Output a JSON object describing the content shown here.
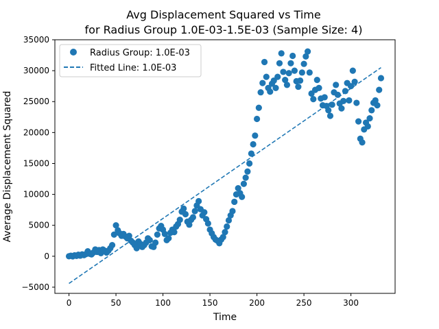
{
  "chart_data": {
    "type": "scatter",
    "title_line1": "Avg Displacement Squared vs Time",
    "title_line2": "for Radius Group 1.0E-03-1.5E-03 (Sample Size: 4)",
    "xlabel": "Time",
    "ylabel": "Average Displacement Squared",
    "xlim": [
      -15,
      347
    ],
    "ylim": [
      -6000,
      35000
    ],
    "xticks": [
      0,
      50,
      100,
      150,
      200,
      250,
      300
    ],
    "yticks": [
      -5000,
      0,
      5000,
      10000,
      15000,
      20000,
      25000,
      30000,
      35000
    ],
    "grid": false,
    "legend_placement": "top-left",
    "colors": {
      "series": "#1f77b4"
    },
    "series": [
      {
        "name": "Radius Group: 1.0E-03",
        "kind": "scatter",
        "points": [
          [
            0,
            0
          ],
          [
            2,
            80
          ],
          [
            4,
            -20
          ],
          [
            6,
            150
          ],
          [
            8,
            50
          ],
          [
            10,
            250
          ],
          [
            12,
            100
          ],
          [
            14,
            300
          ],
          [
            16,
            180
          ],
          [
            18,
            350
          ],
          [
            20,
            800
          ],
          [
            22,
            400
          ],
          [
            24,
            300
          ],
          [
            26,
            600
          ],
          [
            28,
            1100
          ],
          [
            30,
            700
          ],
          [
            32,
            1000
          ],
          [
            34,
            500
          ],
          [
            36,
            1100
          ],
          [
            38,
            900
          ],
          [
            40,
            600
          ],
          [
            42,
            900
          ],
          [
            44,
            1300
          ],
          [
            46,
            1800
          ],
          [
            48,
            3500
          ],
          [
            50,
            5000
          ],
          [
            52,
            4200
          ],
          [
            54,
            3700
          ],
          [
            56,
            3300
          ],
          [
            58,
            3600
          ],
          [
            60,
            3200
          ],
          [
            62,
            2900
          ],
          [
            64,
            3300
          ],
          [
            66,
            2500
          ],
          [
            68,
            2200
          ],
          [
            70,
            1800
          ],
          [
            72,
            1300
          ],
          [
            74,
            2400
          ],
          [
            76,
            2000
          ],
          [
            78,
            1500
          ],
          [
            80,
            1800
          ],
          [
            82,
            2200
          ],
          [
            84,
            2900
          ],
          [
            86,
            2600
          ],
          [
            88,
            1600
          ],
          [
            90,
            1500
          ],
          [
            92,
            2200
          ],
          [
            94,
            3500
          ],
          [
            96,
            4500
          ],
          [
            98,
            4900
          ],
          [
            100,
            4300
          ],
          [
            102,
            3600
          ],
          [
            104,
            2600
          ],
          [
            106,
            2900
          ],
          [
            108,
            3800
          ],
          [
            110,
            4300
          ],
          [
            112,
            3900
          ],
          [
            114,
            4800
          ],
          [
            116,
            5200
          ],
          [
            118,
            5900
          ],
          [
            120,
            7200
          ],
          [
            122,
            7700
          ],
          [
            124,
            6800
          ],
          [
            126,
            5600
          ],
          [
            128,
            5100
          ],
          [
            130,
            5900
          ],
          [
            132,
            6300
          ],
          [
            134,
            7300
          ],
          [
            136,
            8200
          ],
          [
            138,
            8900
          ],
          [
            140,
            7600
          ],
          [
            142,
            6600
          ],
          [
            144,
            7100
          ],
          [
            146,
            6000
          ],
          [
            148,
            5300
          ],
          [
            150,
            4300
          ],
          [
            152,
            3700
          ],
          [
            154,
            3100
          ],
          [
            156,
            2700
          ],
          [
            158,
            2500
          ],
          [
            160,
            2100
          ],
          [
            162,
            2700
          ],
          [
            164,
            3100
          ],
          [
            166,
            3900
          ],
          [
            168,
            4800
          ],
          [
            170,
            5800
          ],
          [
            172,
            6600
          ],
          [
            174,
            7300
          ],
          [
            176,
            8800
          ],
          [
            178,
            10000
          ],
          [
            180,
            11000
          ],
          [
            182,
            10200
          ],
          [
            184,
            9600
          ],
          [
            186,
            11700
          ],
          [
            188,
            12700
          ],
          [
            190,
            13700
          ],
          [
            192,
            15000
          ],
          [
            194,
            16600
          ],
          [
            196,
            18100
          ],
          [
            198,
            19500
          ],
          [
            200,
            22200
          ],
          [
            202,
            24000
          ],
          [
            204,
            26500
          ],
          [
            206,
            28000
          ],
          [
            208,
            31400
          ],
          [
            210,
            29000
          ],
          [
            212,
            27200
          ],
          [
            214,
            26600
          ],
          [
            216,
            27900
          ],
          [
            218,
            28400
          ],
          [
            220,
            27200
          ],
          [
            222,
            29000
          ],
          [
            224,
            31200
          ],
          [
            226,
            32800
          ],
          [
            228,
            29800
          ],
          [
            230,
            28500
          ],
          [
            232,
            27700
          ],
          [
            234,
            29600
          ],
          [
            236,
            31200
          ],
          [
            238,
            32400
          ],
          [
            240,
            30000
          ],
          [
            242,
            28300
          ],
          [
            244,
            27400
          ],
          [
            246,
            28400
          ],
          [
            248,
            29700
          ],
          [
            250,
            31100
          ],
          [
            252,
            32300
          ],
          [
            254,
            33100
          ],
          [
            256,
            29700
          ],
          [
            258,
            26300
          ],
          [
            260,
            25400
          ],
          [
            262,
            26900
          ],
          [
            264,
            28500
          ],
          [
            266,
            27200
          ],
          [
            268,
            25500
          ],
          [
            270,
            24400
          ],
          [
            272,
            25700
          ],
          [
            274,
            24300
          ],
          [
            276,
            23600
          ],
          [
            278,
            22700
          ],
          [
            280,
            24500
          ],
          [
            282,
            26500
          ],
          [
            284,
            27700
          ],
          [
            286,
            26100
          ],
          [
            288,
            24700
          ],
          [
            290,
            23900
          ],
          [
            292,
            25100
          ],
          [
            294,
            26700
          ],
          [
            296,
            28000
          ],
          [
            298,
            25200
          ],
          [
            300,
            27500
          ],
          [
            302,
            30000
          ],
          [
            304,
            28200
          ],
          [
            306,
            24800
          ],
          [
            308,
            21800
          ],
          [
            310,
            19000
          ],
          [
            312,
            18400
          ],
          [
            314,
            20500
          ],
          [
            316,
            21600
          ],
          [
            318,
            21000
          ],
          [
            320,
            22300
          ],
          [
            322,
            23600
          ],
          [
            324,
            24800
          ],
          [
            326,
            25200
          ],
          [
            328,
            24400
          ],
          [
            330,
            26900
          ],
          [
            332,
            28800
          ]
        ]
      },
      {
        "name": "Fitted Line: 1.0E-03",
        "kind": "line",
        "style": "dashed",
        "x": [
          0,
          332
        ],
        "y": [
          -4400,
          30500
        ]
      }
    ]
  }
}
